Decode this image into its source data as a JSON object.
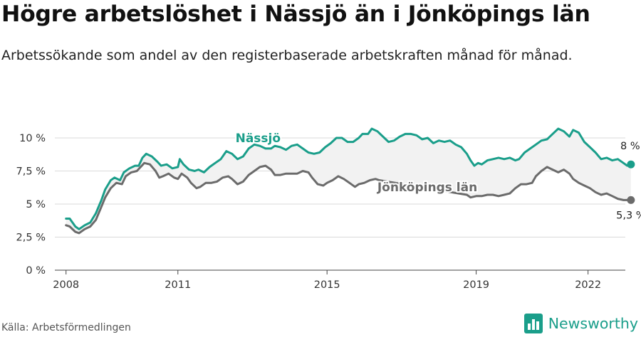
{
  "title": "Högre arbetslöshet i Nässjö än i Jönköpings län",
  "subtitle": "Arbetssökande som andel av den registerbaserade arbetskraften månad för månad.",
  "source": "Källa: Arbetsförmedlingen",
  "brand": "Newsworthy",
  "colors": {
    "nassjo": "#1a9e8a",
    "lan": "#6b6b6b",
    "band": "#f2f2f2",
    "grid": "#d9d9d9"
  },
  "icons": {
    "logo": "newsworthy-logo-icon"
  },
  "chart_data": {
    "type": "line",
    "x_range": [
      2007.7,
      2023.0
    ],
    "ylim": [
      0,
      10
    ],
    "y_ticks": [
      0,
      2.5,
      5,
      7.5,
      10
    ],
    "y_tick_labels": [
      "0 %",
      "2,5 %",
      "5 %",
      "7,5 %",
      "10 %"
    ],
    "x_ticks": [
      2008,
      2011,
      2015,
      2019,
      2022
    ],
    "x_tick_labels": [
      "2008",
      "2011",
      "2015",
      "2019",
      "2022"
    ],
    "grid": true,
    "series": [
      {
        "name": "Nässjö",
        "end_label": "8 %",
        "points": [
          [
            2008.0,
            3.9
          ],
          [
            2008.1,
            3.9
          ],
          [
            2008.25,
            3.3
          ],
          [
            2008.35,
            3.1
          ],
          [
            2008.5,
            3.4
          ],
          [
            2008.65,
            3.6
          ],
          [
            2008.8,
            4.3
          ],
          [
            2008.95,
            5.3
          ],
          [
            2009.05,
            6.1
          ],
          [
            2009.2,
            6.8
          ],
          [
            2009.3,
            7.0
          ],
          [
            2009.45,
            6.8
          ],
          [
            2009.55,
            7.4
          ],
          [
            2009.7,
            7.7
          ],
          [
            2009.85,
            7.9
          ],
          [
            2009.95,
            7.9
          ],
          [
            2010.05,
            8.5
          ],
          [
            2010.15,
            8.8
          ],
          [
            2010.3,
            8.6
          ],
          [
            2010.45,
            8.2
          ],
          [
            2010.55,
            7.9
          ],
          [
            2010.7,
            8.0
          ],
          [
            2010.85,
            7.7
          ],
          [
            2011.0,
            7.8
          ],
          [
            2011.05,
            8.4
          ],
          [
            2011.15,
            8.0
          ],
          [
            2011.3,
            7.6
          ],
          [
            2011.45,
            7.5
          ],
          [
            2011.55,
            7.6
          ],
          [
            2011.7,
            7.4
          ],
          [
            2011.85,
            7.8
          ],
          [
            2012.0,
            8.1
          ],
          [
            2012.15,
            8.4
          ],
          [
            2012.3,
            9.0
          ],
          [
            2012.45,
            8.8
          ],
          [
            2012.6,
            8.4
          ],
          [
            2012.75,
            8.6
          ],
          [
            2012.9,
            9.2
          ],
          [
            2013.05,
            9.5
          ],
          [
            2013.2,
            9.4
          ],
          [
            2013.35,
            9.2
          ],
          [
            2013.5,
            9.2
          ],
          [
            2013.6,
            9.4
          ],
          [
            2013.75,
            9.3
          ],
          [
            2013.9,
            9.1
          ],
          [
            2014.05,
            9.4
          ],
          [
            2014.2,
            9.5
          ],
          [
            2014.35,
            9.2
          ],
          [
            2014.5,
            8.9
          ],
          [
            2014.65,
            8.8
          ],
          [
            2014.8,
            8.9
          ],
          [
            2014.95,
            9.3
          ],
          [
            2015.1,
            9.6
          ],
          [
            2015.25,
            10.0
          ],
          [
            2015.4,
            10.0
          ],
          [
            2015.55,
            9.7
          ],
          [
            2015.7,
            9.7
          ],
          [
            2015.85,
            10.0
          ],
          [
            2015.95,
            10.3
          ],
          [
            2016.1,
            10.3
          ],
          [
            2016.2,
            10.7
          ],
          [
            2016.35,
            10.5
          ],
          [
            2016.5,
            10.1
          ],
          [
            2016.65,
            9.7
          ],
          [
            2016.8,
            9.8
          ],
          [
            2016.95,
            10.1
          ],
          [
            2017.1,
            10.3
          ],
          [
            2017.25,
            10.3
          ],
          [
            2017.4,
            10.2
          ],
          [
            2017.55,
            9.9
          ],
          [
            2017.7,
            10.0
          ],
          [
            2017.85,
            9.6
          ],
          [
            2018.0,
            9.8
          ],
          [
            2018.15,
            9.7
          ],
          [
            2018.3,
            9.8
          ],
          [
            2018.45,
            9.5
          ],
          [
            2018.6,
            9.3
          ],
          [
            2018.75,
            8.8
          ],
          [
            2018.85,
            8.3
          ],
          [
            2018.95,
            7.9
          ],
          [
            2019.05,
            8.1
          ],
          [
            2019.15,
            8.0
          ],
          [
            2019.3,
            8.3
          ],
          [
            2019.45,
            8.4
          ],
          [
            2019.6,
            8.5
          ],
          [
            2019.75,
            8.4
          ],
          [
            2019.9,
            8.5
          ],
          [
            2020.05,
            8.3
          ],
          [
            2020.15,
            8.4
          ],
          [
            2020.3,
            8.9
          ],
          [
            2020.45,
            9.2
          ],
          [
            2020.6,
            9.5
          ],
          [
            2020.75,
            9.8
          ],
          [
            2020.9,
            9.9
          ],
          [
            2021.05,
            10.3
          ],
          [
            2021.2,
            10.7
          ],
          [
            2021.35,
            10.5
          ],
          [
            2021.5,
            10.1
          ],
          [
            2021.6,
            10.6
          ],
          [
            2021.75,
            10.4
          ],
          [
            2021.9,
            9.7
          ],
          [
            2022.05,
            9.3
          ],
          [
            2022.2,
            8.9
          ],
          [
            2022.35,
            8.4
          ],
          [
            2022.5,
            8.5
          ],
          [
            2022.65,
            8.3
          ],
          [
            2022.8,
            8.4
          ],
          [
            2022.95,
            8.1
          ],
          [
            2023.05,
            7.9
          ],
          [
            2023.15,
            8.0
          ]
        ]
      },
      {
        "name": "Jönköpings län",
        "end_label": "5,3 %",
        "points": [
          [
            2008.0,
            3.4
          ],
          [
            2008.1,
            3.3
          ],
          [
            2008.25,
            2.9
          ],
          [
            2008.35,
            2.8
          ],
          [
            2008.5,
            3.1
          ],
          [
            2008.65,
            3.3
          ],
          [
            2008.8,
            3.8
          ],
          [
            2008.95,
            4.8
          ],
          [
            2009.05,
            5.5
          ],
          [
            2009.2,
            6.2
          ],
          [
            2009.35,
            6.6
          ],
          [
            2009.5,
            6.5
          ],
          [
            2009.6,
            7.1
          ],
          [
            2009.75,
            7.4
          ],
          [
            2009.9,
            7.5
          ],
          [
            2010.0,
            7.8
          ],
          [
            2010.1,
            8.1
          ],
          [
            2010.25,
            8.0
          ],
          [
            2010.4,
            7.5
          ],
          [
            2010.5,
            7.0
          ],
          [
            2010.6,
            7.1
          ],
          [
            2010.75,
            7.3
          ],
          [
            2010.9,
            7.0
          ],
          [
            2011.0,
            6.9
          ],
          [
            2011.1,
            7.3
          ],
          [
            2011.25,
            7.0
          ],
          [
            2011.35,
            6.6
          ],
          [
            2011.5,
            6.2
          ],
          [
            2011.6,
            6.3
          ],
          [
            2011.75,
            6.6
          ],
          [
            2011.9,
            6.6
          ],
          [
            2012.05,
            6.7
          ],
          [
            2012.2,
            7.0
          ],
          [
            2012.35,
            7.1
          ],
          [
            2012.45,
            6.9
          ],
          [
            2012.6,
            6.5
          ],
          [
            2012.75,
            6.7
          ],
          [
            2012.9,
            7.2
          ],
          [
            2013.05,
            7.5
          ],
          [
            2013.2,
            7.8
          ],
          [
            2013.35,
            7.9
          ],
          [
            2013.5,
            7.6
          ],
          [
            2013.6,
            7.2
          ],
          [
            2013.75,
            7.2
          ],
          [
            2013.9,
            7.3
          ],
          [
            2014.05,
            7.3
          ],
          [
            2014.2,
            7.3
          ],
          [
            2014.35,
            7.5
          ],
          [
            2014.5,
            7.4
          ],
          [
            2014.6,
            7.0
          ],
          [
            2014.75,
            6.5
          ],
          [
            2014.9,
            6.4
          ],
          [
            2015.0,
            6.6
          ],
          [
            2015.15,
            6.8
          ],
          [
            2015.3,
            7.1
          ],
          [
            2015.45,
            6.9
          ],
          [
            2015.6,
            6.6
          ],
          [
            2015.75,
            6.3
          ],
          [
            2015.85,
            6.5
          ],
          [
            2016.0,
            6.6
          ],
          [
            2016.15,
            6.8
          ],
          [
            2016.3,
            6.9
          ],
          [
            2016.4,
            6.8
          ],
          [
            2018.75,
            5.7
          ],
          [
            2018.85,
            5.5
          ],
          [
            2019.0,
            5.6
          ],
          [
            2019.15,
            5.6
          ],
          [
            2019.3,
            5.7
          ],
          [
            2019.45,
            5.7
          ],
          [
            2019.6,
            5.6
          ],
          [
            2019.75,
            5.7
          ],
          [
            2019.9,
            5.8
          ],
          [
            2020.05,
            6.2
          ],
          [
            2020.2,
            6.5
          ],
          [
            2020.35,
            6.5
          ],
          [
            2020.5,
            6.6
          ],
          [
            2020.6,
            7.1
          ],
          [
            2020.75,
            7.5
          ],
          [
            2020.9,
            7.8
          ],
          [
            2021.05,
            7.6
          ],
          [
            2021.2,
            7.4
          ],
          [
            2021.35,
            7.6
          ],
          [
            2021.5,
            7.3
          ],
          [
            2021.6,
            6.9
          ],
          [
            2021.75,
            6.6
          ],
          [
            2021.9,
            6.4
          ],
          [
            2022.05,
            6.2
          ],
          [
            2022.2,
            5.9
          ],
          [
            2022.35,
            5.7
          ],
          [
            2022.5,
            5.8
          ],
          [
            2022.65,
            5.6
          ],
          [
            2022.8,
            5.4
          ],
          [
            2022.95,
            5.3
          ],
          [
            2023.15,
            5.3
          ]
        ]
      }
    ]
  }
}
